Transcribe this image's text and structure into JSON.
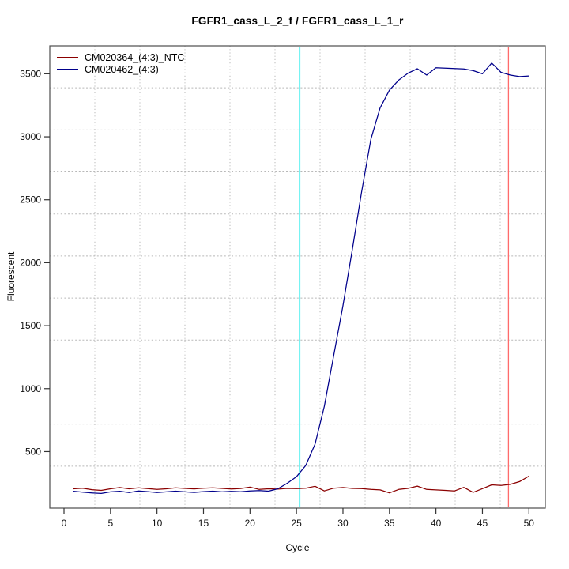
{
  "chart_data": {
    "type": "line",
    "title": "FGFR1_cass_L_2_f / FGFR1_cass_L_1_r",
    "xlabel": "Cycle",
    "ylabel": "Fluorescent",
    "x_ticks": [
      0,
      5,
      10,
      15,
      20,
      25,
      30,
      35,
      40,
      45,
      50
    ],
    "y_ticks": [
      500,
      1000,
      1500,
      2000,
      2500,
      3000,
      3500
    ],
    "xlim": [
      -1.53,
      51.76
    ],
    "ylim": [
      51,
      3722
    ],
    "grid": {
      "visible": true,
      "nx": 11,
      "ny": 11,
      "style": "dotted",
      "color": "#b8b8b8"
    },
    "frame_color": "#4d4d4d",
    "tick_color": "#333333",
    "legend": {
      "position": "top-left"
    },
    "x": [
      1,
      2,
      3,
      4,
      5,
      6,
      7,
      8,
      9,
      10,
      11,
      12,
      13,
      14,
      15,
      16,
      17,
      18,
      19,
      20,
      21,
      22,
      23,
      24,
      25,
      26,
      27,
      28,
      29,
      30,
      31,
      32,
      33,
      34,
      35,
      36,
      37,
      38,
      39,
      40,
      41,
      42,
      43,
      44,
      45,
      46,
      47,
      48,
      49,
      50
    ],
    "series": [
      {
        "name": "CM020364_(4:3)_NTC",
        "color": "#8B0000",
        "values": [
          205,
          210,
          198,
          192,
          205,
          215,
          205,
          212,
          206,
          200,
          205,
          212,
          208,
          204,
          210,
          213,
          208,
          203,
          207,
          218,
          200,
          205,
          202,
          208,
          206,
          210,
          225,
          188,
          210,
          215,
          208,
          206,
          200,
          196,
          172,
          200,
          208,
          226,
          200,
          196,
          192,
          188,
          216,
          176,
          206,
          236,
          232,
          240,
          262,
          305
        ]
      },
      {
        "name": "CM020462_(4:3)",
        "color": "#00008B",
        "values": [
          185,
          178,
          172,
          168,
          180,
          185,
          175,
          188,
          182,
          175,
          180,
          186,
          180,
          176,
          182,
          186,
          180,
          184,
          181,
          188,
          190,
          186,
          205,
          248,
          300,
          390,
          560,
          860,
          1260,
          1660,
          2100,
          2560,
          2980,
          3230,
          3370,
          3450,
          3505,
          3540,
          3490,
          3548,
          3545,
          3542,
          3538,
          3525,
          3500,
          3585,
          3512,
          3490,
          3478,
          3483
        ]
      }
    ],
    "vlines": [
      {
        "name": "threshold-cycle-vline",
        "x": 25.35,
        "color": "#00e8e8",
        "width": 1.6
      },
      {
        "name": "end-cycle-vline",
        "x": 47.8,
        "color": "#ff6b6b",
        "width": 1.3
      }
    ]
  }
}
